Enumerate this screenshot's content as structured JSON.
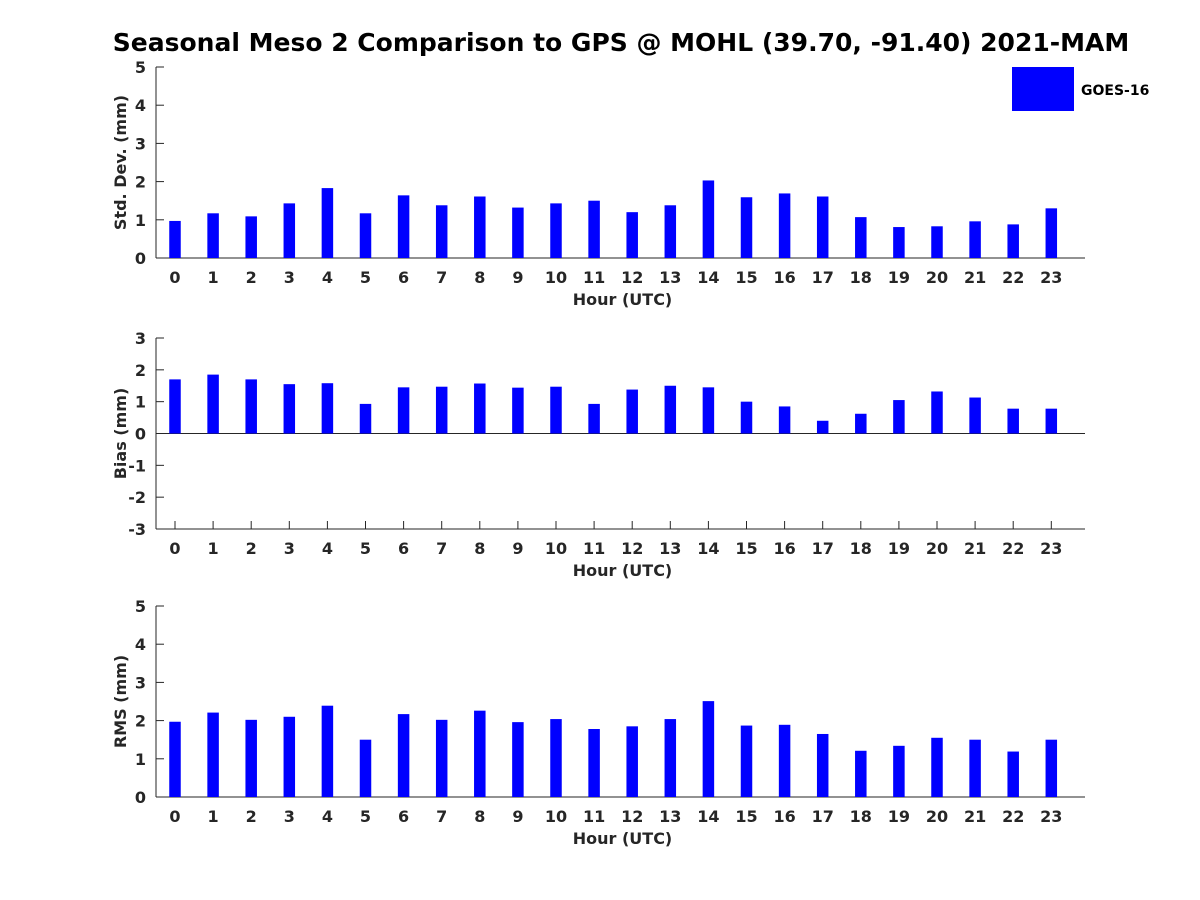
{
  "chart_data": {
    "title": "Seasonal Meso 2 Comparison to GPS @ MOHL (39.70, -91.40) 2021-MAM",
    "type": "bar",
    "bar_color": "#0000ff",
    "legend": {
      "entries": [
        "GOES-16"
      ],
      "placement": "top-right"
    },
    "categories": [
      "0",
      "1",
      "2",
      "3",
      "4",
      "5",
      "6",
      "7",
      "8",
      "9",
      "10",
      "11",
      "12",
      "13",
      "14",
      "15",
      "16",
      "17",
      "18",
      "19",
      "20",
      "21",
      "22",
      "23"
    ],
    "panels": [
      {
        "id": "std",
        "xlabel": "Hour (UTC)",
        "ylabel": "Std. Dev. (mm)",
        "ylim": [
          0,
          5
        ],
        "yticks": [
          "0",
          "1",
          "2",
          "3",
          "4",
          "5"
        ],
        "series": [
          {
            "name": "GOES-16",
            "values": [
              0.97,
              1.17,
              1.09,
              1.43,
              1.83,
              1.17,
              1.64,
              1.38,
              1.61,
              1.32,
              1.43,
              1.5,
              1.2,
              1.38,
              2.03,
              1.59,
              1.69,
              1.61,
              1.07,
              0.81,
              0.83,
              0.96,
              0.88,
              1.3
            ]
          }
        ]
      },
      {
        "id": "bias",
        "xlabel": "Hour (UTC)",
        "ylabel": "Bias (mm)",
        "ylim": [
          -3,
          3
        ],
        "yticks": [
          "-3",
          "-2",
          "-1",
          "0",
          "1",
          "2",
          "3"
        ],
        "series": [
          {
            "name": "GOES-16",
            "values": [
              1.7,
              1.85,
              1.7,
              1.55,
              1.58,
              0.93,
              1.45,
              1.47,
              1.57,
              1.44,
              1.47,
              0.93,
              1.38,
              1.5,
              1.45,
              1.0,
              0.85,
              0.4,
              0.62,
              1.05,
              1.32,
              1.13,
              0.78,
              0.78
            ]
          }
        ]
      },
      {
        "id": "rms",
        "xlabel": "Hour (UTC)",
        "ylabel": "RMS (mm)",
        "ylim": [
          0,
          5
        ],
        "yticks": [
          "0",
          "1",
          "2",
          "3",
          "4",
          "5"
        ],
        "series": [
          {
            "name": "GOES-16",
            "values": [
              1.97,
              2.21,
              2.02,
              2.1,
              2.39,
              1.5,
              2.17,
              2.02,
              2.26,
              1.96,
              2.04,
              1.78,
              1.85,
              2.04,
              2.51,
              1.87,
              1.89,
              1.65,
              1.21,
              1.34,
              1.55,
              1.5,
              1.19,
              1.5
            ]
          }
        ]
      }
    ]
  }
}
